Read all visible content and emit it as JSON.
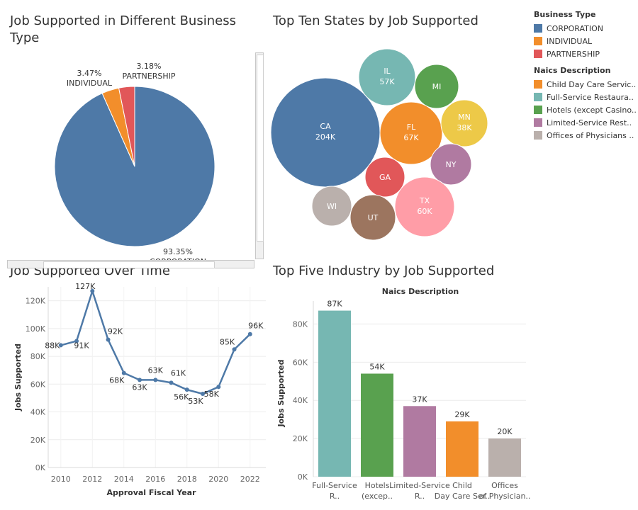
{
  "titles": {
    "pie": "Job Supported in Different Business Type",
    "bubble": "Top Ten States by Job Supported",
    "line": "Job Supported Over Time",
    "bar": "Top Five Industry by Job Supported"
  },
  "legend": {
    "business_title": "Business Type",
    "business_items": [
      {
        "label": "CORPORATION",
        "color": "#4e79a7"
      },
      {
        "label": "INDIVIDUAL",
        "color": "#f28e2b"
      },
      {
        "label": "PARTNERSHIP",
        "color": "#e15759"
      }
    ],
    "naics_title": "Naics Description",
    "naics_items": [
      {
        "label": "Child Day Care Servic..",
        "color": "#f28e2b"
      },
      {
        "label": "Full-Service Restaura..",
        "color": "#76b7b2"
      },
      {
        "label": "Hotels (except Casino..",
        "color": "#59a14f"
      },
      {
        "label": "Limited-Service Rest..",
        "color": "#b07aa1"
      },
      {
        "label": "Offices of Physicians ..",
        "color": "#bab0ac"
      }
    ]
  },
  "chart_data": [
    {
      "type": "pie",
      "title": "Job Supported in Different Business Type",
      "slices": [
        {
          "name": "CORPORATION",
          "value": 93.35,
          "label": "93.35%",
          "name_label": "CORPORATION",
          "color": "#4e79a7"
        },
        {
          "name": "INDIVIDUAL",
          "value": 3.47,
          "label": "3.47%",
          "name_label": "INDIVIDUAL",
          "color": "#f28e2b"
        },
        {
          "name": "PARTNERSHIP",
          "value": 3.18,
          "label": "3.18%",
          "name_label": "PARTNERSHIP",
          "color": "#e15759"
        }
      ]
    },
    {
      "type": "bubble",
      "title": "Top Ten States by Job Supported",
      "bubbles": [
        {
          "state": "CA",
          "value_label": "204K",
          "color": "#4e79a7"
        },
        {
          "state": "IL",
          "value_label": "57K",
          "color": "#76b7b2"
        },
        {
          "state": "MI",
          "value_label": "",
          "color": "#59a14f"
        },
        {
          "state": "FL",
          "value_label": "67K",
          "color": "#f28e2b"
        },
        {
          "state": "MN",
          "value_label": "38K",
          "color": "#edc948"
        },
        {
          "state": "NY",
          "value_label": "",
          "color": "#b07aa1"
        },
        {
          "state": "GA",
          "value_label": "",
          "color": "#e15759"
        },
        {
          "state": "TX",
          "value_label": "60K",
          "color": "#ff9da7"
        },
        {
          "state": "WI",
          "value_label": "",
          "color": "#bab0ac"
        },
        {
          "state": "UT",
          "value_label": "",
          "color": "#9c755f"
        }
      ]
    },
    {
      "type": "line",
      "title": "Job Supported Over Time",
      "xlabel": "Approval Fiscal Year",
      "ylabel": "Jobs Supported",
      "x": [
        2010,
        2011,
        2012,
        2013,
        2014,
        2015,
        2016,
        2017,
        2018,
        2019,
        2020,
        2021,
        2022
      ],
      "y": [
        88,
        91,
        127,
        92,
        68,
        63,
        63,
        61,
        56,
        53,
        58,
        85,
        96
      ],
      "point_labels": [
        "88K",
        "91K",
        "127K",
        "92K",
        "68K",
        "63K",
        "63K",
        "61K",
        "56K",
        "53K",
        "58K",
        "85K",
        "96K"
      ],
      "xticks": [
        "2010",
        "2012",
        "2014",
        "2016",
        "2018",
        "2020",
        "2022"
      ],
      "yticks": [
        "0K",
        "20K",
        "40K",
        "60K",
        "80K",
        "100K",
        "120K"
      ],
      "ylim": [
        0,
        130
      ],
      "color": "#4e79a7",
      "grid": true
    },
    {
      "type": "bar",
      "title": "Top Five Industry by Job Supported",
      "header": "Naics Description",
      "ylabel": "Jobs Supported",
      "categories": [
        "Full-Service R..",
        "Hotels (excep..",
        "Limited-Service R..",
        "Child Day Care Ser..",
        "Offices of Physician.."
      ],
      "values": [
        87,
        54,
        37,
        29,
        20
      ],
      "value_labels": [
        "87K",
        "54K",
        "37K",
        "29K",
        "20K"
      ],
      "colors": [
        "#76b7b2",
        "#59a14f",
        "#b07aa1",
        "#f28e2b",
        "#bab0ac"
      ],
      "yticks": [
        "0K",
        "20K",
        "40K",
        "60K",
        "80K"
      ],
      "ylim": [
        0,
        95
      ],
      "grid": true
    }
  ]
}
